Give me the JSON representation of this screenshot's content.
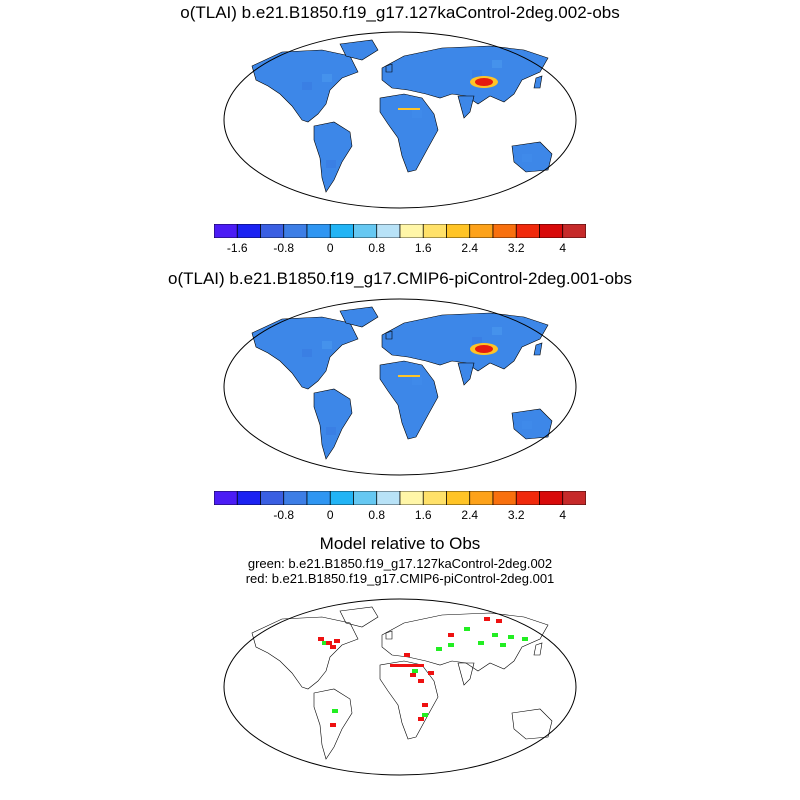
{
  "panel1": {
    "title": "o(TLAI) b.e21.B1850.f19_g17.127kaControl-2deg.002-obs",
    "colorbar_labels": [
      "-1.6",
      "-0.8",
      "0",
      "0.8",
      "1.6",
      "2.4",
      "3.2",
      "4"
    ]
  },
  "panel2": {
    "title": "o(TLAI) b.e21.B1850.f19_g17.CMIP6-piControl-2deg.001-obs",
    "colorbar_labels": [
      "-0.8",
      "0",
      "0.8",
      "1.6",
      "2.4",
      "3.2",
      "4"
    ]
  },
  "panel3": {
    "title": "Model relative to Obs",
    "line1": "green: b.e21.B1850.f19_g17.127kaControl-2deg.002",
    "line2": "red: b.e21.B1850.f19_g17.CMIP6-piControl-2deg.001"
  },
  "colorbar_colors": [
    "#4b1cf5",
    "#1b22f2",
    "#3a5fe2",
    "#3d7ee6",
    "#2f96f2",
    "#22b4f5",
    "#66c8f2",
    "#b8e2f7",
    "#fff6a8",
    "#ffe169",
    "#ffc426",
    "#fda21a",
    "#f8700e",
    "#f02a0c",
    "#d80a0a",
    "#c62a2a"
  ],
  "colors": {
    "land_base": "#3d87e8",
    "ocean": "#ffffff",
    "high_anomaly": "#e61b0f",
    "mid_anomaly": "#ffc426",
    "green_marker": "#22ee22",
    "red_marker": "#ee1111"
  }
}
